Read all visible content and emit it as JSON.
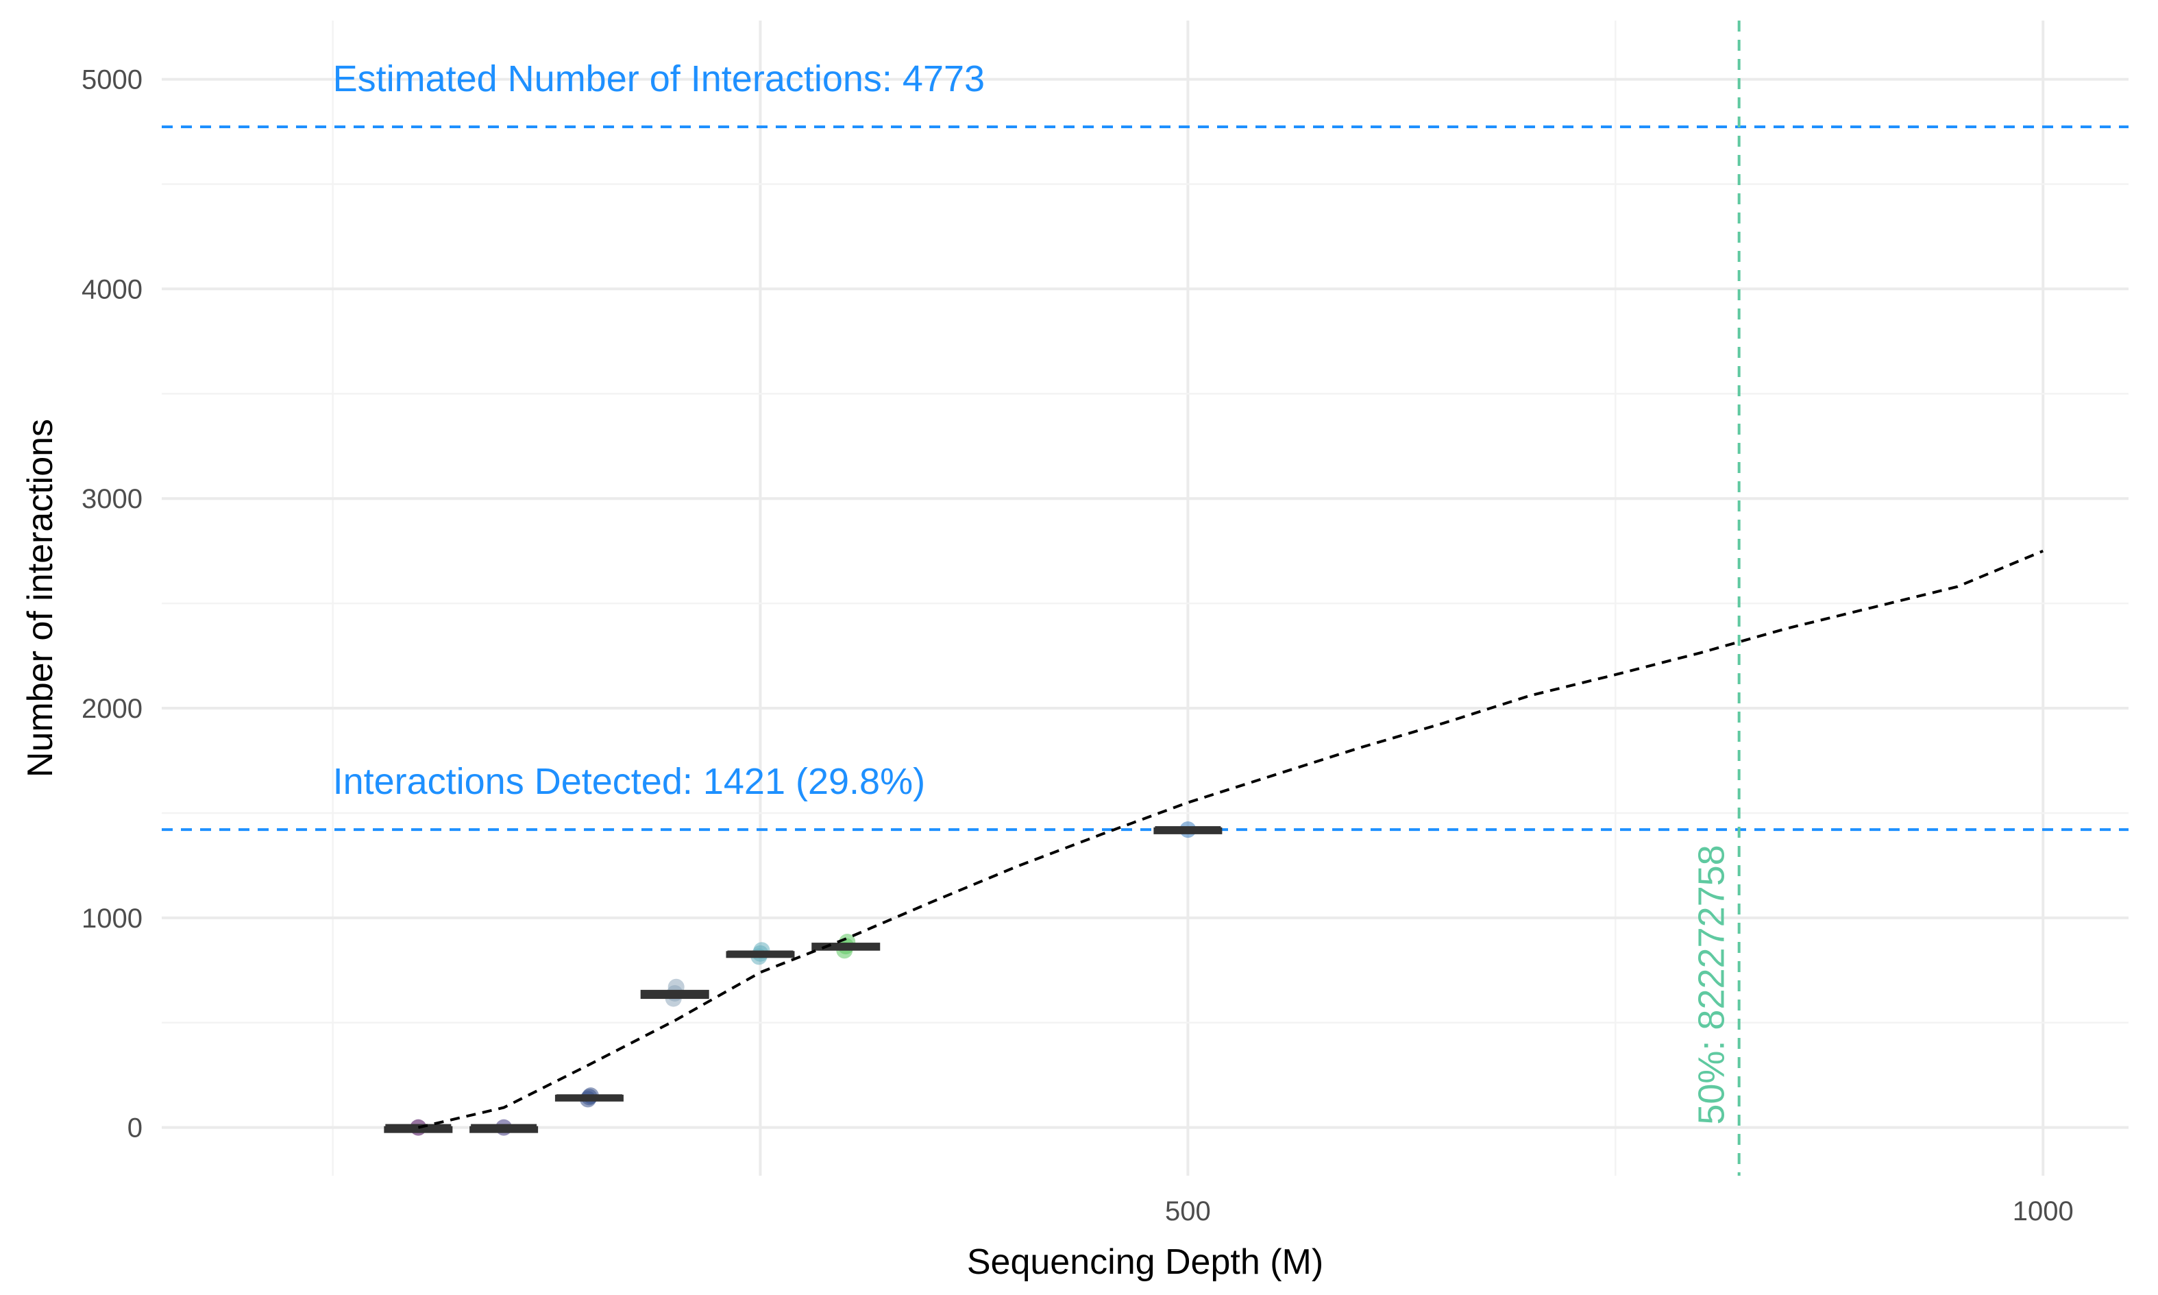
{
  "chart_data": {
    "type": "box",
    "xlabel": "Sequencing Depth (M)",
    "ylabel": "Number of interactions",
    "xlim": [
      -100,
      1050
    ],
    "ylim": [
      -230,
      5280
    ],
    "x_ticks": [
      500,
      1000
    ],
    "x_tick_labels": [
      "500",
      "1000"
    ],
    "y_ticks": [
      0,
      1000,
      2000,
      3000,
      4000,
      5000
    ],
    "y_tick_labels": [
      "0",
      "1000",
      "2000",
      "3000",
      "4000",
      "5000"
    ],
    "grid": true,
    "boxes": [
      {
        "x": 50,
        "median": 0,
        "q1": 0,
        "q3": 0,
        "points": [
          0
        ],
        "point_color": "#440154"
      },
      {
        "x": 100,
        "median": 0,
        "q1": 0,
        "q3": 0,
        "points": [
          0
        ],
        "point_color": "#443a83"
      },
      {
        "x": 150,
        "median": 142,
        "q1": 135,
        "q3": 150,
        "points": [
          135,
          145,
          152
        ],
        "point_color": "#3b528b"
      },
      {
        "x": 200,
        "median": 635,
        "q1": 620,
        "q3": 650,
        "points": [
          615,
          640,
          670
        ],
        "point_color": "#8fa7bc"
      },
      {
        "x": 250,
        "median": 828,
        "q1": 820,
        "q3": 835,
        "points": [
          815,
          830,
          845
        ],
        "point_color": "#67b0c0"
      },
      {
        "x": 300,
        "median": 862,
        "q1": 850,
        "q3": 875,
        "points": [
          845,
          865,
          885
        ],
        "point_color": "#5ec962"
      },
      {
        "x": 500,
        "median": 1421,
        "q1": 1417,
        "q3": 1425,
        "points": [
          1421
        ],
        "point_color": "#3e7fc1"
      }
    ],
    "fitted_curve": {
      "style": "dashed",
      "color": "#000000",
      "x": [
        50,
        100,
        150,
        200,
        250,
        300,
        350,
        400,
        450,
        500,
        550,
        600,
        650,
        700,
        750,
        800,
        850,
        900,
        950,
        1000
      ],
      "y": [
        0,
        95,
        300,
        510,
        740,
        900,
        1075,
        1245,
        1400,
        1550,
        1680,
        1810,
        1930,
        2060,
        2160,
        2265,
        2380,
        2480,
        2580,
        2750
      ]
    },
    "reference_lines": [
      {
        "orientation": "horizontal",
        "value": 4773,
        "color": "#1e90ff",
        "style": "dashed"
      },
      {
        "orientation": "horizontal",
        "value": 1421,
        "color": "#1e90ff",
        "style": "dashed"
      },
      {
        "orientation": "vertical",
        "value": 822.272758,
        "color": "#5fc9a0",
        "style": "dashed"
      }
    ],
    "annotations": [
      {
        "text": "Estimated Number of Interactions: 4773",
        "x": 0,
        "y": 4773,
        "color": "#1e90ff"
      },
      {
        "text": "Interactions Detected: 1421 (29.8%)",
        "x": 0,
        "y": 1421,
        "color": "#1e90ff"
      },
      {
        "text": "50%: 822272758",
        "x": 822.272758,
        "y": 0,
        "color": "#5fc9a0",
        "rotated": true
      }
    ]
  }
}
